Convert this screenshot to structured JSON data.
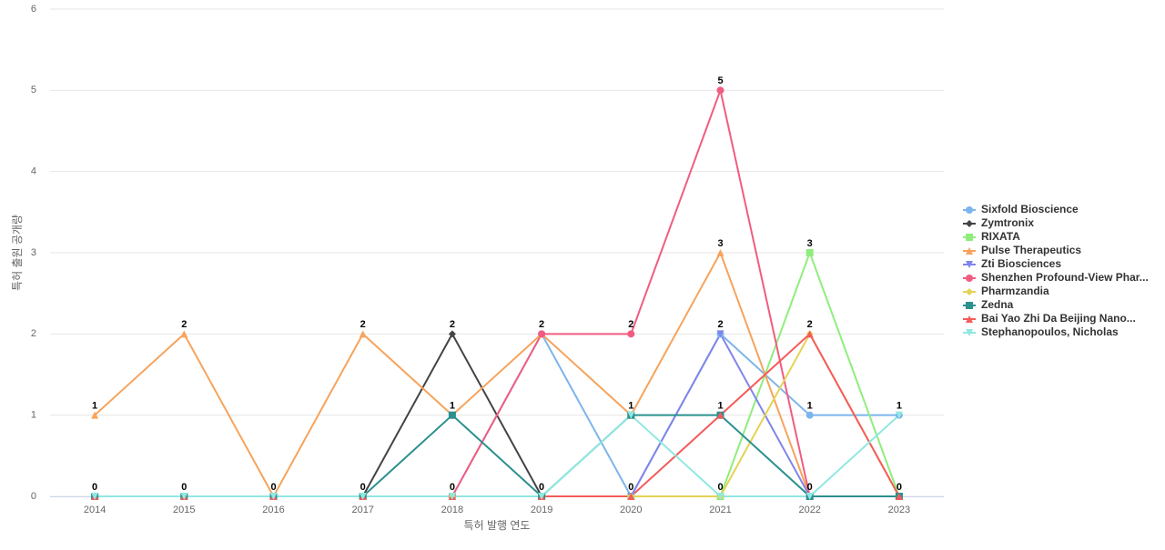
{
  "chart_data": {
    "type": "line",
    "x_label": "특허 발행 연도",
    "y_label": "특허 출원 공개량",
    "categories": [
      "2014",
      "2015",
      "2016",
      "2017",
      "2018",
      "2019",
      "2020",
      "2021",
      "2022",
      "2023"
    ],
    "ylim": [
      0,
      6
    ],
    "yticks": [
      0,
      1,
      2,
      3,
      4,
      5,
      6
    ],
    "grid": true,
    "legend": "right",
    "series": [
      {
        "name": "Sixfold Bioscience",
        "color": "#7cb5ec",
        "marker": "circle",
        "values": [
          0,
          0,
          0,
          0,
          0,
          2,
          0,
          2,
          1,
          1
        ]
      },
      {
        "name": "Zymtronix",
        "color": "#434348",
        "marker": "diamond",
        "values": [
          0,
          0,
          0,
          0,
          2,
          0,
          0,
          0,
          0,
          0
        ]
      },
      {
        "name": "RIXATA",
        "color": "#90ed7d",
        "marker": "square",
        "values": [
          0,
          0,
          0,
          0,
          0,
          0,
          0,
          0,
          3,
          0
        ]
      },
      {
        "name": "Pulse Therapeutics",
        "color": "#f7a35c",
        "marker": "triangle",
        "values": [
          1,
          2,
          0,
          2,
          1,
          2,
          1,
          3,
          0,
          0
        ]
      },
      {
        "name": "Zti Biosciences",
        "color": "#8085e9",
        "marker": "triangle-down",
        "values": [
          0,
          0,
          0,
          0,
          0,
          0,
          0,
          2,
          0,
          0
        ]
      },
      {
        "name": "Shenzhen Profound-View Phar...",
        "color": "#f15c80",
        "marker": "circle",
        "values": [
          0,
          0,
          0,
          0,
          0,
          2,
          2,
          5,
          0,
          0
        ]
      },
      {
        "name": "Pharmzandia",
        "color": "#e4d354",
        "marker": "diamond",
        "values": [
          0,
          0,
          0,
          0,
          0,
          0,
          0,
          0,
          2,
          0
        ]
      },
      {
        "name": "Zedna",
        "color": "#2b908f",
        "marker": "square",
        "values": [
          0,
          0,
          0,
          0,
          1,
          0,
          1,
          1,
          0,
          0
        ]
      },
      {
        "name": "Bai Yao Zhi Da Beijing Nano...",
        "color": "#f45b5b",
        "marker": "triangle",
        "values": [
          0,
          0,
          0,
          0,
          0,
          0,
          0,
          1,
          2,
          0
        ]
      },
      {
        "name": "Stephanopoulos, Nicholas",
        "color": "#91e8e1",
        "marker": "triangle-down",
        "values": [
          0,
          0,
          0,
          0,
          0,
          0,
          1,
          0,
          0,
          1
        ]
      }
    ]
  }
}
